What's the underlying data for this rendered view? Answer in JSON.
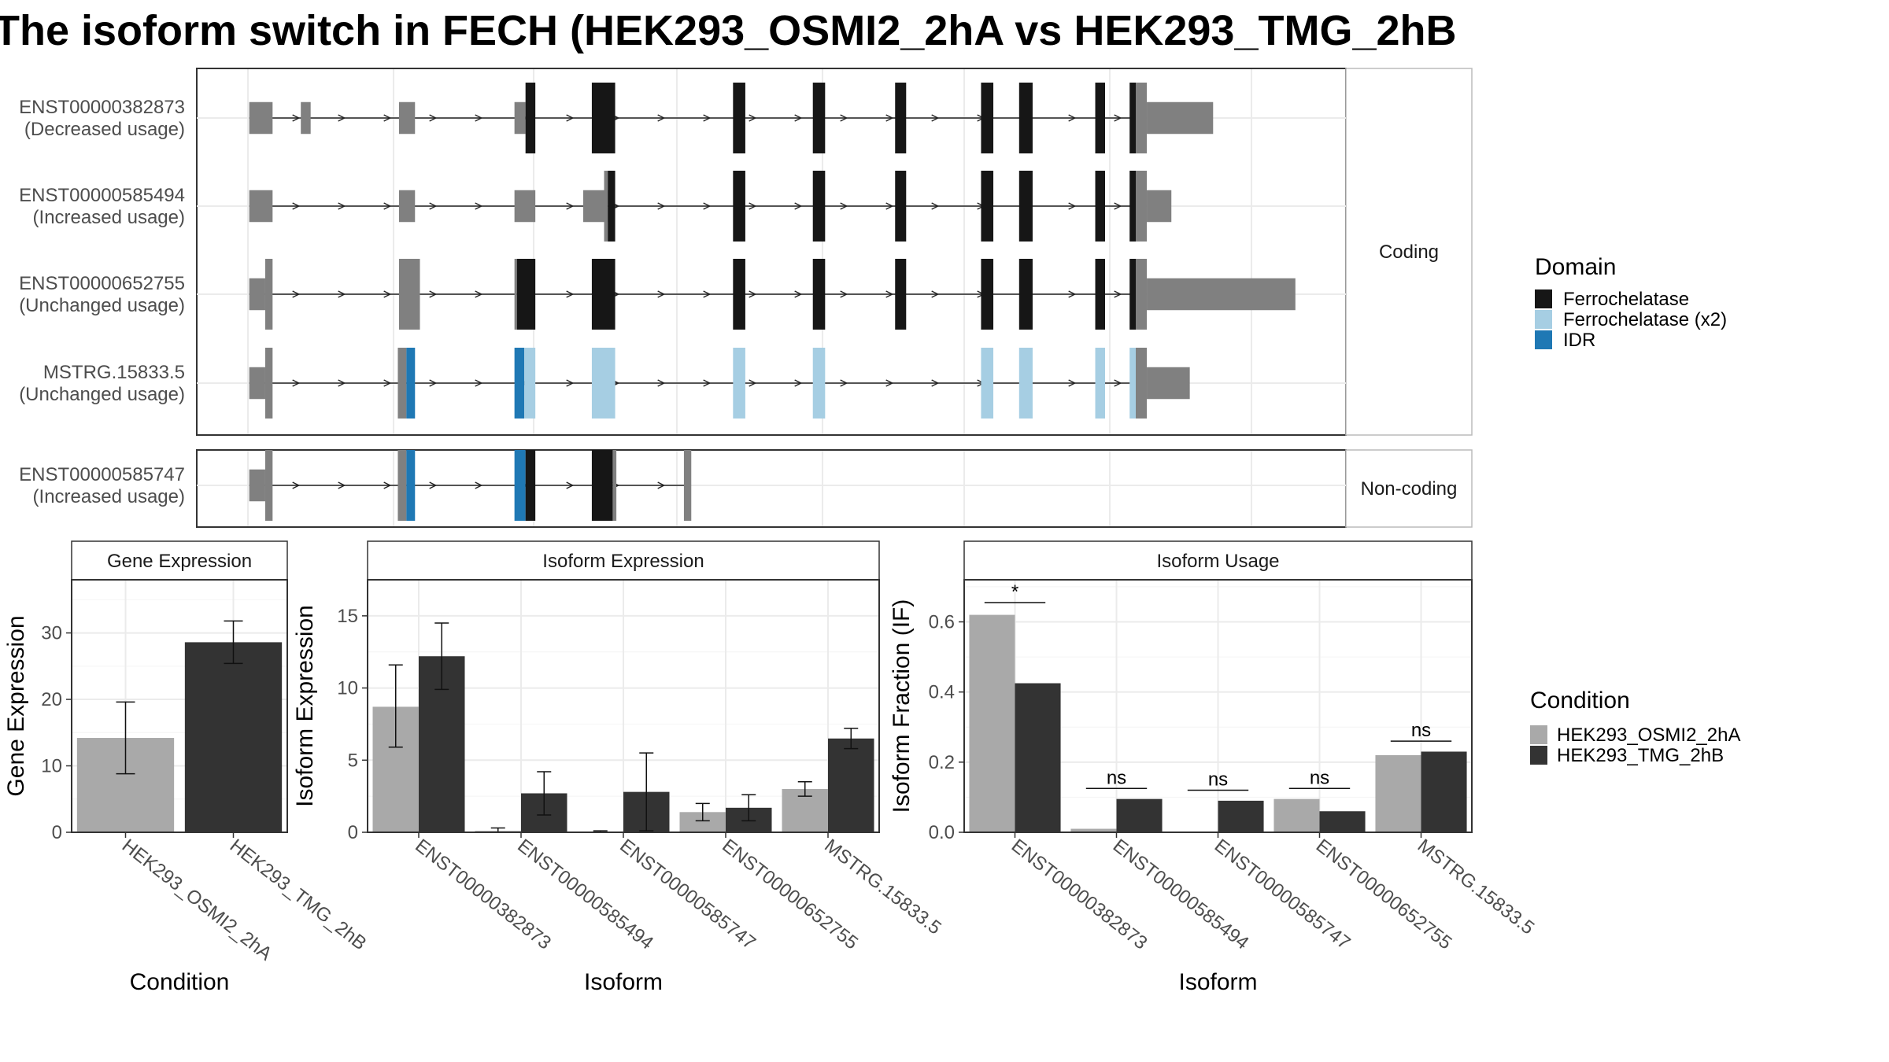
{
  "title": "The isoform switch in FECH (HEK293_OSMI2_2hA vs HEK293_TMG_2hB",
  "colors": {
    "utr": "#808080",
    "ferrochelatase": "#161616",
    "ferrochelatase_x2": "#a6cee3",
    "idr": "#1f78b4",
    "cond_a": "#a9a9a9",
    "cond_b": "#333333"
  },
  "structure": {
    "facets": [
      "Coding",
      "Non-coding"
    ],
    "legend_title": "Domain",
    "legend": [
      {
        "label": "Ferrochelatase",
        "color": "#161616"
      },
      {
        "label": "Ferrochelatase (x2)",
        "color": "#a6cee3"
      },
      {
        "label": "IDR",
        "color": "#1f78b4"
      }
    ],
    "transcripts": [
      {
        "id": "ENST00000382873",
        "usage": "(Decreased usage)",
        "panel": 0
      },
      {
        "id": "ENST00000585494",
        "usage": "(Increased usage)",
        "panel": 0
      },
      {
        "id": "ENST00000652755",
        "usage": "(Unchanged usage)",
        "panel": 0
      },
      {
        "id": "MSTRG.15833.5",
        "usage": "(Unchanged usage)",
        "panel": 0
      },
      {
        "id": "ENST00000585747",
        "usage": "(Increased usage)",
        "panel": 1
      }
    ]
  },
  "chart_data": [
    {
      "type": "bar",
      "title": "Gene Expression",
      "xlabel": "Condition",
      "ylabel": "Gene Expression",
      "ylim": [
        0,
        38
      ],
      "yticks": [
        0,
        10,
        20,
        30
      ],
      "categories": [
        "HEK293_OSMI2_2hA",
        "HEK293_TMG_2hB"
      ],
      "values": [
        14.2,
        28.6
      ],
      "errors": [
        [
          8.8,
          19.6
        ],
        [
          25.4,
          31.8
        ]
      ],
      "colors": [
        "#a9a9a9",
        "#333333"
      ]
    },
    {
      "type": "bar",
      "title": "Isoform Expression",
      "xlabel": "Isoform",
      "ylabel": "Isoform Expression",
      "ylim": [
        0,
        17.5
      ],
      "yticks": [
        0,
        5,
        10,
        15
      ],
      "categories": [
        "ENST00000382873",
        "ENST00000585494",
        "ENST00000585747",
        "ENST00000652755",
        "MSTRG.15833.5"
      ],
      "series": [
        {
          "name": "HEK293_OSMI2_2hA",
          "values": [
            8.7,
            0.1,
            0.05,
            1.4,
            3.0
          ],
          "errors": [
            [
              5.9,
              11.6
            ],
            [
              0.0,
              0.3
            ],
            [
              0.0,
              0.1
            ],
            [
              0.8,
              2.0
            ],
            [
              2.5,
              3.5
            ]
          ]
        },
        {
          "name": "HEK293_TMG_2hB",
          "values": [
            12.2,
            2.7,
            2.8,
            1.7,
            6.5
          ],
          "errors": [
            [
              9.9,
              14.5
            ],
            [
              1.2,
              4.2
            ],
            [
              0.1,
              5.5
            ],
            [
              0.8,
              2.6
            ],
            [
              5.8,
              7.2
            ]
          ]
        }
      ]
    },
    {
      "type": "bar",
      "title": "Isoform Usage",
      "xlabel": "Isoform",
      "ylabel": "Isoform Fraction (IF)",
      "ylim": [
        0,
        0.72
      ],
      "yticks": [
        0.0,
        0.2,
        0.4,
        0.6
      ],
      "ytick_labels": [
        "0.0",
        "0.2",
        "0.4",
        "0.6"
      ],
      "categories": [
        "ENST00000382873",
        "ENST00000585494",
        "ENST00000585747",
        "ENST00000652755",
        "MSTRG.15833.5"
      ],
      "series": [
        {
          "name": "HEK293_OSMI2_2hA",
          "values": [
            0.62,
            0.01,
            0.0,
            0.095,
            0.22
          ]
        },
        {
          "name": "HEK293_TMG_2hB",
          "values": [
            0.425,
            0.095,
            0.09,
            0.06,
            0.23
          ]
        }
      ],
      "significance": [
        {
          "label": "*",
          "y": 0.655
        },
        {
          "label": "ns",
          "y": 0.125
        },
        {
          "label": "ns",
          "y": 0.12
        },
        {
          "label": "ns",
          "y": 0.125
        },
        {
          "label": "ns",
          "y": 0.26
        }
      ]
    }
  ],
  "condition_legend": {
    "title": "Condition",
    "items": [
      {
        "label": "HEK293_OSMI2_2hA",
        "color": "#a9a9a9"
      },
      {
        "label": "HEK293_TMG_2hB",
        "color": "#333333"
      }
    ]
  }
}
